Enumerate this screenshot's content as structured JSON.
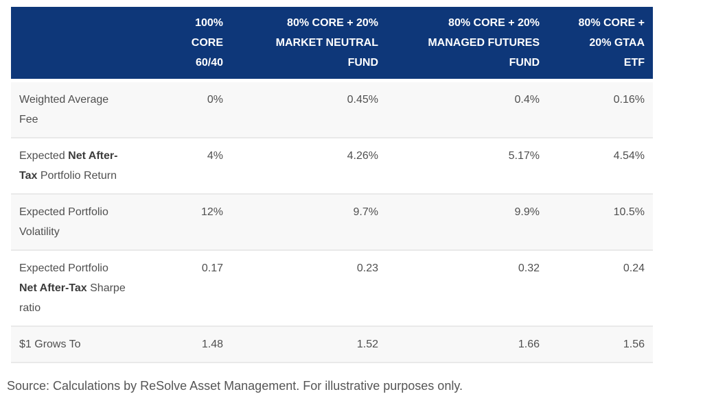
{
  "chart_data": {
    "type": "table",
    "columns": [
      "",
      "100% CORE 60/40",
      "80% CORE + 20% MARKET NEUTRAL FUND",
      "80% CORE + 20% MANAGED FUTURES FUND",
      "80% CORE + 20% GTAA ETF"
    ],
    "column_header_lines": [
      [],
      [
        "100%",
        "CORE",
        "60/40"
      ],
      [
        "80% CORE + 20%",
        "MARKET NEUTRAL",
        "FUND"
      ],
      [
        "80% CORE + 20%",
        "MANAGED FUTURES",
        "FUND"
      ],
      [
        "80% CORE +",
        "20% GTAA",
        "ETF"
      ]
    ],
    "rows": [
      {
        "label": "Weighted Average Fee",
        "label_parts": [
          {
            "text": "Weighted Average Fee",
            "bold": false
          }
        ],
        "values": [
          "0%",
          "0.45%",
          "0.4%",
          "0.16%"
        ]
      },
      {
        "label": "Expected Net After-Tax Portfolio Return",
        "label_parts": [
          {
            "text": "Expected ",
            "bold": false
          },
          {
            "text": "Net After-Tax",
            "bold": true
          },
          {
            "text": " Portfolio Return",
            "bold": false
          }
        ],
        "values": [
          "4%",
          "4.26%",
          "5.17%",
          "4.54%"
        ]
      },
      {
        "label": "Expected Portfolio Volatility",
        "label_parts": [
          {
            "text": "Expected Portfolio Volatility",
            "bold": false
          }
        ],
        "values": [
          "12%",
          "9.7%",
          "9.9%",
          "10.5%"
        ]
      },
      {
        "label": "Expected Portfolio Net After-Tax Sharpe ratio",
        "label_parts": [
          {
            "text": "Expected Portfolio ",
            "bold": false
          },
          {
            "text": "Net After-Tax",
            "bold": true
          },
          {
            "text": " Sharpe ratio",
            "bold": false
          }
        ],
        "values": [
          "0.17",
          "0.23",
          "0.32",
          "0.24"
        ]
      },
      {
        "label": "$1 Grows To",
        "label_parts": [
          {
            "text": "$1 Grows To",
            "bold": false
          }
        ],
        "values": [
          "1.48",
          "1.52",
          "1.66",
          "1.56"
        ]
      }
    ],
    "legend_position": "none",
    "grid": false
  },
  "footer": {
    "source_note": "Source: Calculations by ReSolve Asset Management. For illustrative purposes only."
  },
  "colors": {
    "header_bg": "#0e3779",
    "header_text": "#ffffff",
    "row_alt_bg": "#f8f8f8",
    "row_bg": "#ffffff",
    "divider": "#e9e9e9",
    "body_text": "#4f4f4f",
    "bold_text": "#3c3c3c",
    "footer_text": "#555555"
  }
}
